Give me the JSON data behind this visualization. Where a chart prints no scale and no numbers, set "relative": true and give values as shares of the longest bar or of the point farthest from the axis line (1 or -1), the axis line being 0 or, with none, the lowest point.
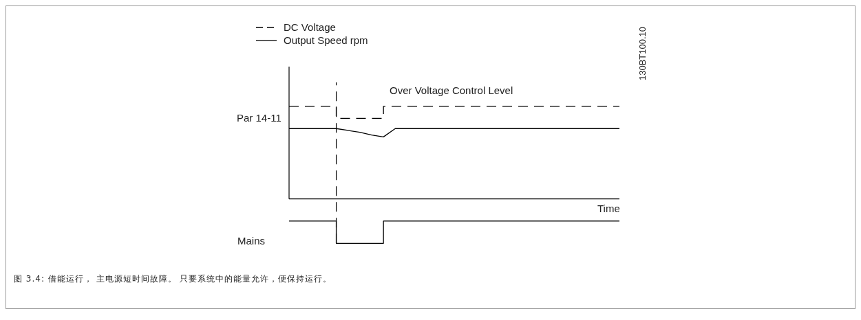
{
  "chart_data": {
    "type": "line",
    "relative": true,
    "xlabel": "Time",
    "legend": "top left",
    "grid": false,
    "marker": "none",
    "categories": [
      null,
      null,
      null,
      null,
      null,
      null,
      null,
      null,
      null,
      null,
      null,
      null,
      null,
      null,
      null,
      null,
      null,
      null,
      null,
      null,
      null,
      null,
      null,
      null,
      null,
      null,
      null,
      null,
      null
    ],
    "series": [
      {
        "name": "DC Voltage",
        "type": "step",
        "color": "#000000",
        "line_style": "dashed",
        "values": [
          1,
          1,
          1,
          1,
          0.87,
          0.87,
          0.87,
          0.87,
          1,
          1,
          1,
          1,
          1,
          1,
          1,
          1,
          1,
          1,
          1,
          1,
          1,
          1,
          1,
          1,
          1,
          1,
          1,
          1,
          1
        ]
      },
      {
        "name": "Output Speed rpm",
        "type": "line",
        "color": "#000000",
        "line_style": "solid",
        "values": [
          0.76,
          0.76,
          0.76,
          0.76,
          0.76,
          0.74,
          0.72,
          0.69,
          0.67,
          0.76,
          0.76,
          0.76,
          0.76,
          0.76,
          0.76,
          0.76,
          0.76,
          0.76,
          0.76,
          0.76,
          0.76,
          0.76,
          0.76,
          0.76,
          0.76,
          0.76,
          0.76,
          0.76,
          0.76
        ]
      },
      {
        "name": "Mains",
        "type": "step",
        "color": "#000000",
        "line_style": "solid",
        "values": [
          -0.24,
          -0.24,
          -0.24,
          -0.24,
          -0.48,
          -0.48,
          -0.48,
          -0.48,
          -0.24,
          -0.24,
          -0.24,
          -0.24,
          -0.24,
          -0.24,
          -0.24,
          -0.24,
          -0.24,
          -0.24,
          -0.24,
          -0.24,
          -0.24,
          -0.24,
          -0.24,
          -0.24,
          -0.24,
          -0.24,
          -0.24,
          -0.24,
          -0.24
        ]
      }
    ],
    "annotations": [
      "Par 14-11",
      "Over Voltage Control Level",
      "130BT100.10",
      "图 3.4: 借能运行， 主电源短时间故障。 只要系统中的能量允许，便保持运行。"
    ]
  }
}
